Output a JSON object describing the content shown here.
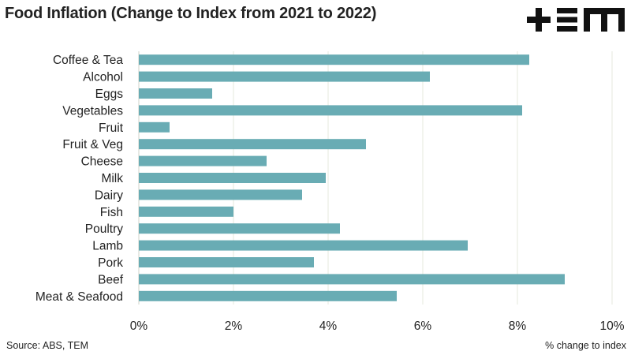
{
  "title": "Food Inflation (Change to Index from 2021 to 2022)",
  "logo_text": "+TEM",
  "source": "Source: ABS, TEM",
  "xlabel": "% change to index",
  "colors": {
    "bar": "#69acb4",
    "grid": "#e4e8dc",
    "axis": "#cfd3c8",
    "logo": "#111111"
  },
  "chart_data": {
    "type": "bar",
    "orientation": "horizontal",
    "title": "Food Inflation (Change to Index from 2021 to 2022)",
    "xlabel": "% change to index",
    "ylabel": "",
    "categories": [
      "Coffee & Tea",
      "Alcohol",
      "Eggs",
      "Vegetables",
      "Fruit",
      "Fruit & Veg",
      "Cheese",
      "Milk",
      "Dairy",
      "Fish",
      "Poultry",
      "Lamb",
      "Pork",
      "Beef",
      "Meat & Seafood"
    ],
    "values": [
      8.25,
      6.15,
      1.55,
      8.1,
      0.65,
      4.8,
      2.7,
      3.95,
      3.45,
      2.0,
      4.25,
      6.95,
      3.7,
      9.0,
      5.45
    ],
    "xlim": [
      0,
      10
    ],
    "xticks": [
      0,
      2,
      4,
      6,
      8,
      10
    ],
    "xtick_labels": [
      "0%",
      "2%",
      "4%",
      "6%",
      "8%",
      "10%"
    ],
    "grid": true,
    "legend": "none"
  }
}
